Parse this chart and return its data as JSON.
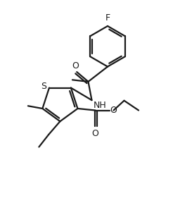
{
  "background_color": "#ffffff",
  "line_color": "#1a1a1a",
  "line_width": 1.6,
  "dbo": 0.12,
  "font_size": 9,
  "fig_width": 2.56,
  "fig_height": 2.88,
  "xlim": [
    0,
    10
  ],
  "ylim": [
    0,
    11.25
  ]
}
